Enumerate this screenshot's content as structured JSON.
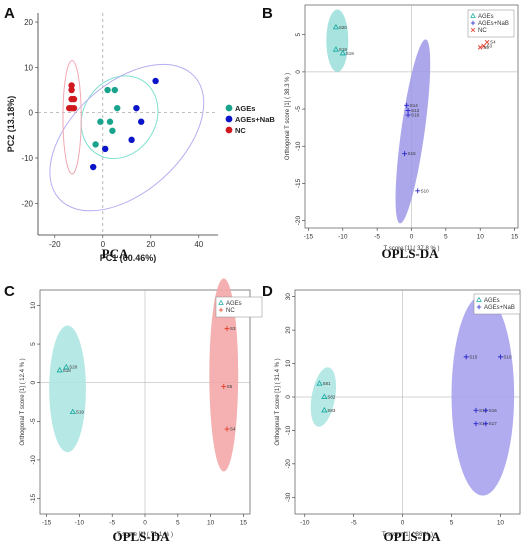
{
  "chart_data": [
    {
      "type": "scatter",
      "panel": "A",
      "caption": "PCA",
      "xlabel": "PC1 (60.46%)",
      "ylabel": "PC2 (13.18%)",
      "xlim": [
        -27,
        48
      ],
      "ylim": [
        -27,
        22
      ],
      "xticks": [
        -20,
        0,
        20,
        40
      ],
      "yticks": [
        -20,
        -10,
        0,
        10,
        20
      ],
      "legend": {
        "position": "right"
      },
      "series": [
        {
          "name": "AGEs",
          "color": "#1aa38c",
          "marker": "circle",
          "points": [
            [
              2,
              5
            ],
            [
              5,
              5
            ],
            [
              6,
              1
            ],
            [
              3,
              -2
            ],
            [
              -1,
              -2
            ],
            [
              4,
              -4
            ],
            [
              -3,
              -7
            ]
          ]
        },
        {
          "name": "AGEs+NaB",
          "color": "#0b14c9",
          "marker": "circle",
          "points": [
            [
              22,
              7
            ],
            [
              14,
              1
            ],
            [
              16,
              -2
            ],
            [
              12,
              -6
            ],
            [
              1,
              -8
            ],
            [
              -4,
              -12
            ]
          ]
        },
        {
          "name": "NC",
          "color": "#d0181f",
          "marker": "circle",
          "points": [
            [
              -13,
              6
            ],
            [
              -13,
              5
            ],
            [
              -13,
              3
            ],
            [
              -12,
              3
            ],
            [
              -14,
              1
            ],
            [
              -13,
              1
            ],
            [
              -12,
              1
            ]
          ]
        }
      ]
    },
    {
      "type": "scatter",
      "panel": "B",
      "caption": "OPLS-DA",
      "xlabel": "T score [1] ( 37.8 % )",
      "ylabel": "Orthogonal T score [1] ( 38.3 % )",
      "xlim": [
        -15.5,
        15.5
      ],
      "ylim": [
        -21,
        9
      ],
      "xticks": [
        -15,
        -10,
        -5,
        0,
        5,
        10,
        15
      ],
      "yticks": [
        -20,
        -15,
        -10,
        -5,
        0,
        5
      ],
      "legend": {
        "position": "top-right"
      },
      "series": [
        {
          "name": "AGEs",
          "color": "#13a8a0",
          "marker": "triangle",
          "points": [
            [
              "S20",
              -11,
              6
            ],
            [
              "S18",
              -11,
              3
            ],
            [
              "S19",
              -10,
              2.5
            ]
          ]
        },
        {
          "name": "AGEs+NaB",
          "color": "#2a28c8",
          "marker": "plus",
          "points": [
            [
              "S14",
              -0.7,
              -4.5
            ],
            [
              "S13",
              -0.5,
              -5.2
            ],
            [
              "S16",
              -0.5,
              -5.8
            ],
            [
              "S15",
              -1,
              -11
            ],
            [
              "S10",
              0.9,
              -16
            ]
          ]
        },
        {
          "name": "NC",
          "color": "#e4402c",
          "marker": "x",
          "points": [
            [
              "S4",
              11,
              4
            ],
            [
              "S3",
              10.5,
              3.5
            ],
            [
              "S5",
              10,
              3.3
            ]
          ]
        }
      ]
    },
    {
      "type": "scatter",
      "panel": "C",
      "caption": "OPLS-DA",
      "xlabel": "T score [1] ( 71.1 % )",
      "ylabel": "Orthogonal T score [1] ( 12.4 % )",
      "xlim": [
        -16,
        16
      ],
      "ylim": [
        -17,
        12
      ],
      "xticks": [
        -15,
        -10,
        -5,
        0,
        5,
        10,
        15
      ],
      "yticks": [
        -15,
        -10,
        -5,
        0,
        5,
        10
      ],
      "legend": {
        "position": "top-right"
      },
      "series": [
        {
          "name": "AGEs",
          "color": "#13a8a0",
          "marker": "triangle",
          "points": [
            [
              "S20",
              -12,
              2
            ],
            [
              "S18",
              -13,
              1.6
            ],
            [
              "S19",
              -11,
              -3.8
            ]
          ]
        },
        {
          "name": "NC",
          "color": "#e4402c",
          "marker": "plus",
          "points": [
            [
              "S3",
              12.5,
              7
            ],
            [
              "S5",
              12,
              -0.5
            ],
            [
              "S4",
              12.5,
              -6
            ]
          ]
        }
      ]
    },
    {
      "type": "scatter",
      "panel": "D",
      "caption": "OPLS-DA",
      "xlabel": "T score [1] ( 36 % )",
      "ylabel": "Orthogonal T score [1] ( 31.4 % )",
      "xlim": [
        -11,
        12
      ],
      "ylim": [
        -35,
        32
      ],
      "xticks": [
        -10,
        -5,
        0,
        5,
        10
      ],
      "yticks": [
        -30,
        -20,
        -10,
        0,
        10,
        20,
        30
      ],
      "legend": {
        "position": "top-right"
      },
      "series": [
        {
          "name": "AGEs",
          "color": "#13a8a0",
          "marker": "triangle",
          "points": [
            [
              "S81",
              -8.5,
              4
            ],
            [
              "S82",
              -8,
              0
            ],
            [
              "S83",
              -8,
              -4
            ]
          ]
        },
        {
          "name": "AGEs+NaB",
          "color": "#2a28c8",
          "marker": "plus",
          "points": [
            [
              "S15",
              6.5,
              12
            ],
            [
              "S10",
              10,
              12
            ],
            [
              "S13",
              7.5,
              -4
            ],
            [
              "S16",
              8.5,
              -4
            ],
            [
              "S14",
              7.5,
              -8
            ],
            [
              "S17",
              8.5,
              -8
            ]
          ]
        }
      ]
    }
  ]
}
